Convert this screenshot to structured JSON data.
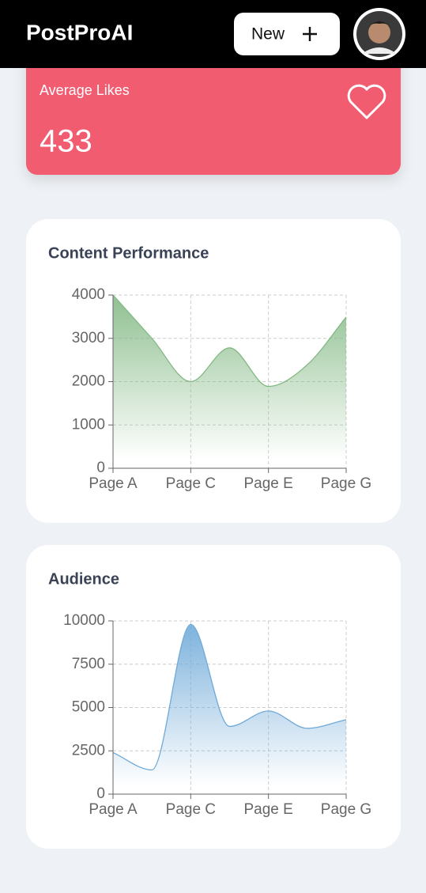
{
  "header": {
    "title": "PostProAI",
    "button": "New"
  },
  "stat_card": {
    "label": "Average Likes",
    "value": 433
  },
  "chart_data": [
    {
      "type": "area",
      "title": "Content Performance",
      "categories": [
        "Page A",
        null,
        "Page C",
        null,
        "Page E",
        null,
        "Page G"
      ],
      "values": [
        4000,
        3000,
        2000,
        2780,
        1890,
        2390,
        3490
      ],
      "color": "#82b883",
      "ylim": [
        0,
        4000
      ],
      "yticks": [
        0,
        1000,
        2000,
        3000,
        4000
      ],
      "grid": true
    },
    {
      "type": "area",
      "title": "Audience",
      "categories": [
        "Page A",
        null,
        "Page C",
        null,
        "Page E",
        null,
        "Page G"
      ],
      "values": [
        2400,
        1398,
        9800,
        3908,
        4800,
        3800,
        4300
      ],
      "color": "#6ea9d8",
      "ylim": [
        0,
        10000
      ],
      "yticks": [
        0,
        2500,
        5000,
        7500,
        10000
      ],
      "grid": true
    }
  ]
}
